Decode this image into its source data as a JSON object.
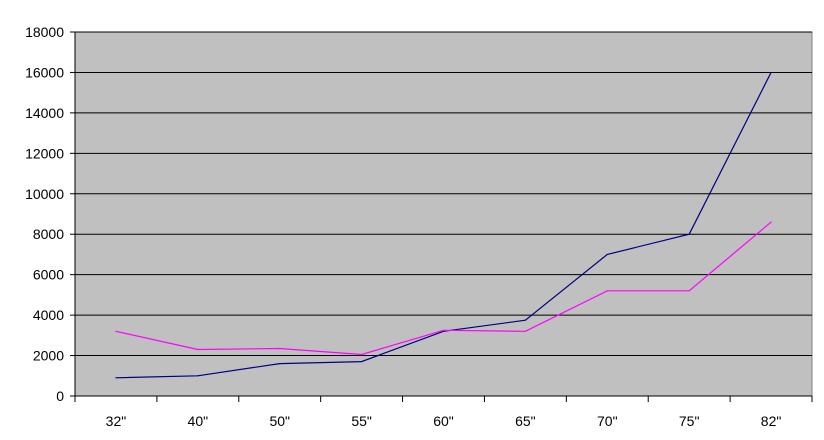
{
  "chart_data": {
    "type": "line",
    "title": "",
    "xlabel": "",
    "ylabel": "",
    "categories": [
      "32\"",
      "40\"",
      "50\"",
      "55\"",
      "60\"",
      "65\"",
      "70\"",
      "75\"",
      "82\""
    ],
    "ylim": [
      0,
      18000
    ],
    "yticks": [
      0,
      2000,
      4000,
      6000,
      8000,
      10000,
      12000,
      14000,
      16000,
      18000
    ],
    "grid": "horizontal",
    "legend": "none",
    "background": "#c0c0c0",
    "series": [
      {
        "color": "#000080",
        "values": [
          900,
          1000,
          1600,
          1700,
          3200,
          3750,
          7000,
          8000,
          16000
        ]
      },
      {
        "color": "#ff00ff",
        "values": [
          3200,
          2300,
          2350,
          2050,
          3250,
          3200,
          5200,
          5200,
          8600
        ]
      }
    ]
  }
}
